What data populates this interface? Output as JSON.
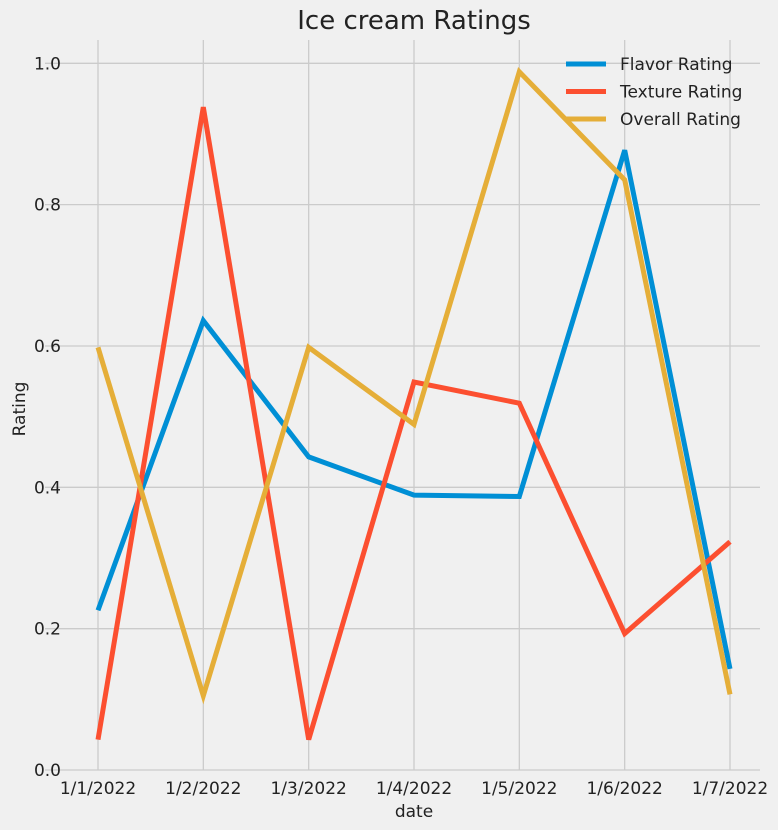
{
  "chart_data": {
    "type": "line",
    "title": "Ice cream Ratings",
    "xlabel": "date",
    "ylabel": "Rating",
    "categories": [
      "1/1/2022",
      "1/2/2022",
      "1/3/2022",
      "1/4/2022",
      "1/5/2022",
      "1/6/2022",
      "1/7/2022"
    ],
    "ylim": [
      0,
      1.033
    ],
    "yticks": [
      "0.0",
      "0.2",
      "0.4",
      "0.6",
      "0.8",
      "1.0"
    ],
    "grid": true,
    "legend_position": "top-right",
    "series": [
      {
        "name": "Flavor Rating",
        "color": "#008fd5",
        "values": [
          0.226,
          0.636,
          0.443,
          0.389,
          0.387,
          0.877,
          0.143
        ]
      },
      {
        "name": "Texture Rating",
        "color": "#fc4f30",
        "values": [
          0.043,
          0.938,
          0.043,
          0.549,
          0.519,
          0.193,
          0.323
        ]
      },
      {
        "name": "Overall Rating",
        "color": "#e5ae38",
        "values": [
          0.598,
          0.105,
          0.598,
          0.489,
          0.988,
          0.835,
          0.107
        ]
      }
    ]
  }
}
